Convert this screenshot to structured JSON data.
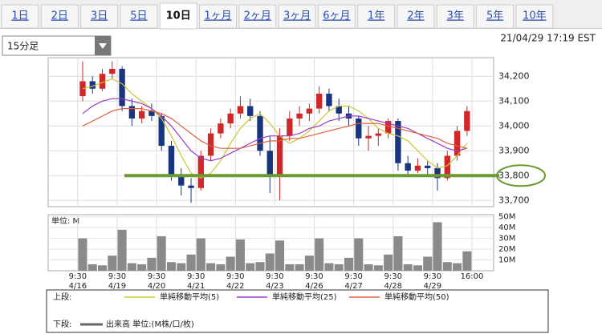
{
  "tabs": {
    "items": [
      "1日",
      "2日",
      "3日",
      "5日",
      "10日",
      "1ヶ月",
      "2ヶ月",
      "3ヶ月",
      "6ヶ月",
      "1年",
      "2年",
      "3年",
      "5年",
      "10年"
    ],
    "active": 4
  },
  "interval": "15分足",
  "timestamp": "21/04/29 17:19 EST",
  "chart_data": [
    {
      "type": "candlestick",
      "legend_label": "上段:",
      "xlim": [
        -3,
        42.2
      ],
      "ylim": [
        33675,
        34275
      ],
      "yticks": [
        {
          "value": 33700,
          "label": "33,700"
        },
        {
          "value": 33800,
          "label": "33,800"
        },
        {
          "value": 33900,
          "label": "33,900"
        },
        {
          "value": 34000,
          "label": "34,000"
        },
        {
          "value": 34100,
          "label": "34,100"
        },
        {
          "value": 34200,
          "label": "34,200"
        }
      ],
      "grid": true,
      "up_color": "#d02828",
      "down_color": "#1a3580",
      "open": [
        34120,
        34180,
        34150,
        34210,
        34230,
        34080,
        34030,
        34060,
        34040,
        33920,
        33800,
        33760,
        33750,
        33880,
        33970,
        34010,
        34050,
        34080,
        34040,
        33900,
        33800,
        33960,
        34030,
        34050,
        34070,
        34130,
        34080,
        34050,
        34030,
        33950,
        33960,
        33970,
        34020,
        33850,
        33820,
        33840,
        33830,
        33790,
        33880,
        33980
      ],
      "high": [
        34260,
        34200,
        34230,
        34260,
        34240,
        34110,
        34080,
        34090,
        34050,
        33940,
        33830,
        33790,
        33900,
        33990,
        34030,
        34070,
        34120,
        34110,
        34060,
        33960,
        33990,
        34060,
        34080,
        34090,
        34160,
        34150,
        34110,
        34080,
        34040,
        34000,
        33990,
        34030,
        34030,
        33880,
        33870,
        33860,
        33850,
        33900,
        34000,
        34080
      ],
      "low": [
        34100,
        34130,
        34140,
        34190,
        34060,
        34000,
        34010,
        34020,
        33900,
        33780,
        33720,
        33690,
        33740,
        33860,
        33950,
        33990,
        34030,
        34020,
        33880,
        33730,
        33700,
        33940,
        34000,
        34020,
        34050,
        34060,
        34020,
        34000,
        33920,
        33900,
        33920,
        33950,
        33820,
        33800,
        33810,
        33800,
        33740,
        33780,
        33860,
        33960
      ],
      "close": [
        34180,
        34150,
        34210,
        34230,
        34080,
        34030,
        34060,
        34040,
        33920,
        33800,
        33760,
        33750,
        33880,
        33970,
        34010,
        34050,
        34080,
        34040,
        33900,
        33800,
        33960,
        34030,
        34050,
        34070,
        34130,
        34080,
        34050,
        34030,
        33950,
        33960,
        33970,
        34020,
        33850,
        33820,
        33840,
        33830,
        33790,
        33880,
        33980,
        34060
      ],
      "moving_averages": [
        {
          "name": "単純移動平均(5)",
          "color": "#c8c832",
          "values": [
            34150,
            34160,
            34175,
            34190,
            34170,
            34130,
            34100,
            34070,
            34030,
            33960,
            33880,
            33810,
            33790,
            33810,
            33860,
            33930,
            33990,
            34030,
            34050,
            34010,
            33960,
            33930,
            33950,
            33980,
            34020,
            34060,
            34080,
            34080,
            34060,
            34030,
            33990,
            33970,
            33960,
            33940,
            33900,
            33860,
            33830,
            33840,
            33880,
            33930
          ]
        },
        {
          "name": "単純移動平均(25)",
          "color": "#9a3cc8",
          "values": [
            34050,
            34080,
            34100,
            34110,
            34110,
            34100,
            34090,
            34070,
            34040,
            34000,
            33950,
            33900,
            33870,
            33860,
            33870,
            33890,
            33910,
            33930,
            33950,
            33960,
            33960,
            33960,
            33970,
            33990,
            34000,
            34020,
            34030,
            34040,
            34040,
            34030,
            34020,
            34010,
            34000,
            33990,
            33970,
            33950,
            33930,
            33910,
            33900,
            33910
          ]
        },
        {
          "name": "単純移動平均(50)",
          "color": "#e0603a",
          "values": [
            34000,
            34020,
            34040,
            34060,
            34070,
            34070,
            34070,
            34060,
            34050,
            34030,
            34000,
            33970,
            33940,
            33920,
            33910,
            33910,
            33910,
            33920,
            33930,
            33940,
            33940,
            33950,
            33950,
            33960,
            33970,
            33980,
            33990,
            34000,
            34010,
            34010,
            34010,
            34000,
            33990,
            33980,
            33970,
            33960,
            33950,
            33930,
            33920,
            33910
          ]
        }
      ],
      "level_line": {
        "value": 33800,
        "color": "#6a9a30"
      }
    },
    {
      "type": "bar",
      "unit_label": "単位: M",
      "legend_label": "下段:",
      "legend_name": "出来高 単位:(M株/口/枚)",
      "color": "#8a8a8a",
      "xlim": [
        -3,
        42.2
      ],
      "ylim": [
        0,
        52
      ],
      "yticks": [
        {
          "value": 10,
          "label": "10M"
        },
        {
          "value": 20,
          "label": "20M"
        },
        {
          "value": 30,
          "label": "30M"
        },
        {
          "value": 40,
          "label": "40M"
        },
        {
          "value": 50,
          "label": "50M"
        }
      ],
      "xticks": [
        {
          "value": 0,
          "label": "9:30",
          "date": "4/16"
        },
        {
          "value": 4,
          "label": "9:30",
          "date": "4/19"
        },
        {
          "value": 8,
          "label": "9:30",
          "date": "4/20"
        },
        {
          "value": 12,
          "label": "9:30",
          "date": "4/21"
        },
        {
          "value": 16,
          "label": "9:30",
          "date": "4/22"
        },
        {
          "value": 20,
          "label": "9:30",
          "date": "4/23"
        },
        {
          "value": 24,
          "label": "9:30",
          "date": "4/26"
        },
        {
          "value": 28,
          "label": "9:30",
          "date": "4/27"
        },
        {
          "value": 32,
          "label": "9:30",
          "date": "4/28"
        },
        {
          "value": 36,
          "label": "9:30",
          "date": "4/29"
        },
        {
          "value": 40,
          "label": "16:00"
        }
      ],
      "values": [
        30,
        6,
        5,
        14,
        38,
        7,
        6,
        12,
        32,
        8,
        7,
        15,
        30,
        7,
        6,
        13,
        29,
        7,
        8,
        16,
        28,
        6,
        6,
        14,
        30,
        7,
        6,
        12,
        30,
        6,
        5,
        15,
        32,
        6,
        5,
        13,
        45,
        8,
        7,
        18
      ]
    }
  ]
}
